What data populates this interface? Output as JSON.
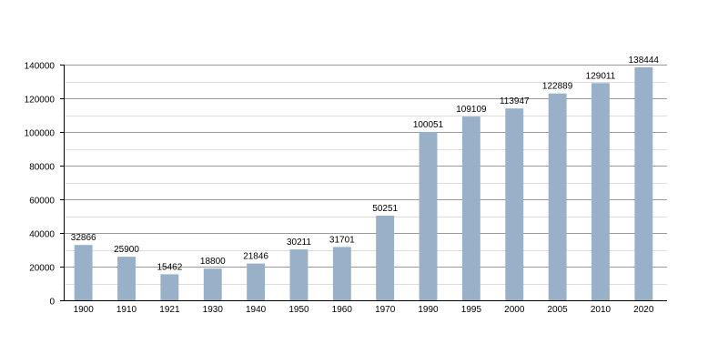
{
  "chart_data": {
    "type": "bar",
    "categories": [
      "1900",
      "1910",
      "1921",
      "1930",
      "1940",
      "1950",
      "1960",
      "1970",
      "1990",
      "1995",
      "2000",
      "2005",
      "2010",
      "2020"
    ],
    "values": [
      32866,
      25900,
      15462,
      18800,
      21846,
      30211,
      31701,
      50251,
      100051,
      109109,
      113947,
      122889,
      129011,
      138444
    ],
    "data_labels": [
      "32866",
      "25900",
      "15462",
      "18800",
      "21846",
      "30211",
      "31701",
      "50251",
      "100051",
      "109109",
      "113947",
      "122889",
      "129011",
      "138444"
    ],
    "yticks": [
      0,
      20000,
      40000,
      60000,
      80000,
      100000,
      120000,
      140000
    ],
    "ytick_labels": [
      "0",
      "20000",
      "40000",
      "60000",
      "80000",
      "100000",
      "120000",
      "140000"
    ],
    "ylim": [
      0,
      140000
    ],
    "grid": true,
    "legend": "none",
    "colors": {
      "bar": "#98b0c8",
      "grid_major": "#9a9a9a",
      "grid_minor": "#dddddd",
      "axis": "#000000"
    },
    "title": "",
    "xlabel": "",
    "ylabel": ""
  }
}
